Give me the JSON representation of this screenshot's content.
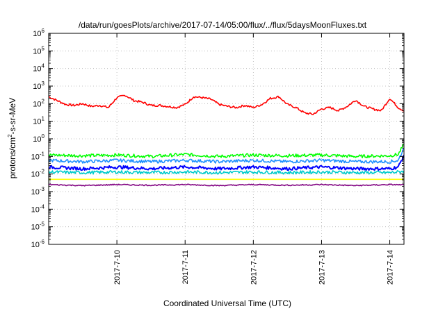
{
  "chart_data": {
    "type": "line",
    "title": "/data/run/goesPlots/archive/2017-07-14/05:00/flux/../flux/5daysMoonFluxes.txt",
    "xlabel": "Coordinated Universal Time (UTC)",
    "ylabel": "protons/cm2-s-sr-MeV",
    "ylabel_parts": {
      "prefix": "protons/cm",
      "sup": "2",
      "suffix": "-s-sr-MeV"
    },
    "yscale": "log",
    "ylim": [
      1e-06,
      1000000.0
    ],
    "xlim": [
      "2017-07-09 00:00",
      "2017-07-14 05:00"
    ],
    "x_ticks": [
      "2017-7-10",
      "2017-7-11",
      "2017-7-12",
      "2017-7-13",
      "2017-7-14"
    ],
    "y_ticks": [
      {
        "base": "10",
        "exp": "-6"
      },
      {
        "base": "10",
        "exp": "-5"
      },
      {
        "base": "10",
        "exp": "-4"
      },
      {
        "base": "10",
        "exp": "-3"
      },
      {
        "base": "10",
        "exp": "-2"
      },
      {
        "base": "10",
        "exp": "-1"
      },
      {
        "base": "10",
        "exp": "0"
      },
      {
        "base": "10",
        "exp": "1"
      },
      {
        "base": "10",
        "exp": "2"
      },
      {
        "base": "10",
        "exp": "3"
      },
      {
        "base": "10",
        "exp": "4"
      },
      {
        "base": "10",
        "exp": "5"
      },
      {
        "base": "10",
        "exp": "6"
      }
    ],
    "grid": true,
    "series": [
      {
        "color": "#ff0000",
        "x": [
          "2017-07-09 00:00",
          "2017-07-09 03:00",
          "2017-07-09 06:00",
          "2017-07-09 09:00",
          "2017-07-09 12:00",
          "2017-07-09 15:00",
          "2017-07-09 18:00",
          "2017-07-09 21:00",
          "2017-07-10 00:00",
          "2017-07-10 03:00",
          "2017-07-10 06:00",
          "2017-07-10 09:00",
          "2017-07-10 12:00",
          "2017-07-10 15:00",
          "2017-07-10 18:00",
          "2017-07-10 21:00",
          "2017-07-11 00:00",
          "2017-07-11 03:00",
          "2017-07-11 06:00",
          "2017-07-11 09:00",
          "2017-07-11 12:00",
          "2017-07-11 15:00",
          "2017-07-11 18:00",
          "2017-07-11 21:00",
          "2017-07-12 00:00",
          "2017-07-12 03:00",
          "2017-07-12 06:00",
          "2017-07-12 09:00",
          "2017-07-12 12:00",
          "2017-07-12 15:00",
          "2017-07-12 18:00",
          "2017-07-12 21:00",
          "2017-07-13 00:00",
          "2017-07-13 03:00",
          "2017-07-13 06:00",
          "2017-07-13 09:00",
          "2017-07-13 12:00",
          "2017-07-13 15:00",
          "2017-07-13 18:00",
          "2017-07-13 21:00",
          "2017-07-14 00:00",
          "2017-07-14 03:00",
          "2017-07-14 05:00"
        ],
        "y": [
          250,
          150,
          90,
          80,
          100,
          70,
          80,
          60,
          220,
          300,
          150,
          120,
          80,
          80,
          70,
          60,
          90,
          250,
          220,
          180,
          90,
          70,
          60,
          80,
          60,
          90,
          200,
          250,
          90,
          60,
          30,
          25,
          50,
          60,
          40,
          70,
          160,
          70,
          50,
          40,
          200,
          60,
          40
        ]
      },
      {
        "color": "#00ff00",
        "x": [
          "2017-07-09 00:00",
          "2017-07-09 12:00",
          "2017-07-10 00:00",
          "2017-07-10 12:00",
          "2017-07-11 00:00",
          "2017-07-11 12:00",
          "2017-07-12 00:00",
          "2017-07-12 12:00",
          "2017-07-13 00:00",
          "2017-07-13 12:00",
          "2017-07-14 00:00",
          "2017-07-14 03:00",
          "2017-07-14 05:00"
        ],
        "y": [
          0.12,
          0.11,
          0.12,
          0.1,
          0.13,
          0.1,
          0.12,
          0.11,
          0.12,
          0.1,
          0.11,
          0.13,
          0.5
        ]
      },
      {
        "color": "#1e90ff",
        "x": [
          "2017-07-09 00:00",
          "2017-07-09 12:00",
          "2017-07-10 00:00",
          "2017-07-10 12:00",
          "2017-07-11 00:00",
          "2017-07-11 12:00",
          "2017-07-12 00:00",
          "2017-07-12 12:00",
          "2017-07-13 00:00",
          "2017-07-13 12:00",
          "2017-07-14 00:00",
          "2017-07-14 03:00",
          "2017-07-14 05:00"
        ],
        "y": [
          0.06,
          0.05,
          0.06,
          0.05,
          0.06,
          0.05,
          0.06,
          0.05,
          0.06,
          0.05,
          0.05,
          0.06,
          0.3
        ]
      },
      {
        "color": "#0000ff",
        "x": [
          "2017-07-09 00:00",
          "2017-07-09 12:00",
          "2017-07-10 00:00",
          "2017-07-10 12:00",
          "2017-07-11 00:00",
          "2017-07-11 12:00",
          "2017-07-12 00:00",
          "2017-07-12 12:00",
          "2017-07-13 00:00",
          "2017-07-13 12:00",
          "2017-07-14 00:00",
          "2017-07-14 03:00",
          "2017-07-14 05:00"
        ],
        "y": [
          0.025,
          0.02,
          0.025,
          0.02,
          0.025,
          0.02,
          0.025,
          0.02,
          0.025,
          0.02,
          0.02,
          0.025,
          0.12
        ]
      },
      {
        "color": "#00cccc",
        "x": [
          "2017-07-09 00:00",
          "2017-07-09 12:00",
          "2017-07-10 00:00",
          "2017-07-10 12:00",
          "2017-07-11 00:00",
          "2017-07-11 12:00",
          "2017-07-12 00:00",
          "2017-07-12 12:00",
          "2017-07-13 00:00",
          "2017-07-13 12:00",
          "2017-07-14 00:00",
          "2017-07-14 03:00",
          "2017-07-14 05:00"
        ],
        "y": [
          0.013,
          0.012,
          0.013,
          0.012,
          0.013,
          0.012,
          0.013,
          0.012,
          0.013,
          0.012,
          0.012,
          0.013,
          0.015
        ]
      },
      {
        "color": "#ffff00",
        "x": [
          "2017-07-09 00:00",
          "2017-07-14 05:00"
        ],
        "y": [
          0.005,
          0.005
        ]
      },
      {
        "color": "#800080",
        "x": [
          "2017-07-09 00:00",
          "2017-07-09 12:00",
          "2017-07-10 00:00",
          "2017-07-10 12:00",
          "2017-07-11 00:00",
          "2017-07-11 12:00",
          "2017-07-12 00:00",
          "2017-07-12 12:00",
          "2017-07-13 00:00",
          "2017-07-13 12:00",
          "2017-07-14 00:00",
          "2017-07-14 05:00"
        ],
        "y": [
          0.0025,
          0.0022,
          0.0025,
          0.0023,
          0.0025,
          0.0022,
          0.0025,
          0.0023,
          0.0025,
          0.0022,
          0.0025,
          0.0024
        ]
      }
    ]
  }
}
